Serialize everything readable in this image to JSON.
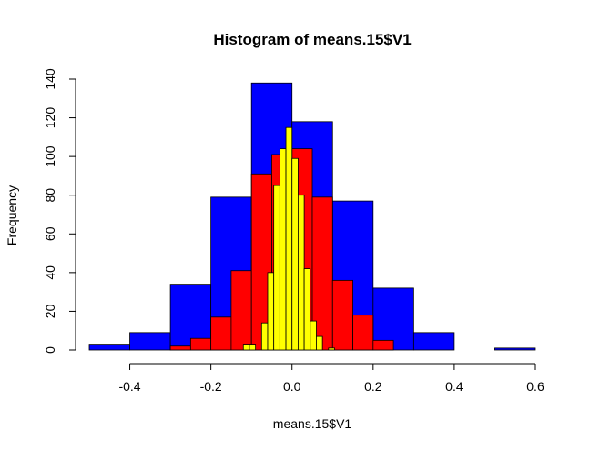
{
  "chart_data": {
    "type": "histogram",
    "title": "Histogram of means.15$V1",
    "xlabel": "means.15$V1",
    "ylabel": "Frequency",
    "xlim": [
      -0.5,
      0.6
    ],
    "ylim": [
      0,
      140
    ],
    "xticks": [
      "-0.4",
      "-0.2",
      "0.0",
      "0.2",
      "0.4",
      "0.6"
    ],
    "xtick_values": [
      -0.4,
      -0.2,
      0.0,
      0.2,
      0.4,
      0.6
    ],
    "yticks": [
      "0",
      "20",
      "40",
      "60",
      "80",
      "100",
      "120",
      "140"
    ],
    "ytick_values": [
      0,
      20,
      40,
      60,
      80,
      100,
      120,
      140
    ],
    "grid": false,
    "series": [
      {
        "color": "#0000ff",
        "bins": [
          {
            "x0": -0.5,
            "x1": -0.4,
            "count": 3
          },
          {
            "x0": -0.4,
            "x1": -0.3,
            "count": 9
          },
          {
            "x0": -0.3,
            "x1": -0.2,
            "count": 34
          },
          {
            "x0": -0.2,
            "x1": -0.1,
            "count": 79
          },
          {
            "x0": -0.1,
            "x1": 0.0,
            "count": 138
          },
          {
            "x0": 0.0,
            "x1": 0.1,
            "count": 118
          },
          {
            "x0": 0.1,
            "x1": 0.2,
            "count": 77
          },
          {
            "x0": 0.2,
            "x1": 0.3,
            "count": 32
          },
          {
            "x0": 0.3,
            "x1": 0.4,
            "count": 9
          },
          {
            "x0": 0.4,
            "x1": 0.5,
            "count": 0
          },
          {
            "x0": 0.5,
            "x1": 0.6,
            "count": 1
          }
        ]
      },
      {
        "color": "#ff0000",
        "bins": [
          {
            "x0": -0.3,
            "x1": -0.25,
            "count": 2
          },
          {
            "x0": -0.25,
            "x1": -0.2,
            "count": 6
          },
          {
            "x0": -0.2,
            "x1": -0.15,
            "count": 17
          },
          {
            "x0": -0.15,
            "x1": -0.1,
            "count": 41
          },
          {
            "x0": -0.1,
            "x1": -0.05,
            "count": 91
          },
          {
            "x0": -0.05,
            "x1": 0.0,
            "count": 101
          },
          {
            "x0": 0.0,
            "x1": 0.05,
            "count": 104
          },
          {
            "x0": 0.05,
            "x1": 0.1,
            "count": 79
          },
          {
            "x0": 0.1,
            "x1": 0.15,
            "count": 36
          },
          {
            "x0": 0.15,
            "x1": 0.2,
            "count": 18
          },
          {
            "x0": 0.2,
            "x1": 0.25,
            "count": 5
          }
        ]
      },
      {
        "color": "#ffff00",
        "bins": [
          {
            "x0": -0.12,
            "x1": -0.105,
            "count": 3
          },
          {
            "x0": -0.105,
            "x1": -0.09,
            "count": 3
          },
          {
            "x0": -0.075,
            "x1": -0.06,
            "count": 14
          },
          {
            "x0": -0.06,
            "x1": -0.045,
            "count": 40
          },
          {
            "x0": -0.045,
            "x1": -0.03,
            "count": 85
          },
          {
            "x0": -0.03,
            "x1": -0.015,
            "count": 104
          },
          {
            "x0": -0.015,
            "x1": 0.0,
            "count": 115
          },
          {
            "x0": 0.0,
            "x1": 0.015,
            "count": 99
          },
          {
            "x0": 0.015,
            "x1": 0.03,
            "count": 80
          },
          {
            "x0": 0.03,
            "x1": 0.045,
            "count": 42
          },
          {
            "x0": 0.045,
            "x1": 0.06,
            "count": 15
          },
          {
            "x0": 0.06,
            "x1": 0.075,
            "count": 7
          },
          {
            "x0": 0.09,
            "x1": 0.105,
            "count": 1
          }
        ]
      }
    ]
  }
}
